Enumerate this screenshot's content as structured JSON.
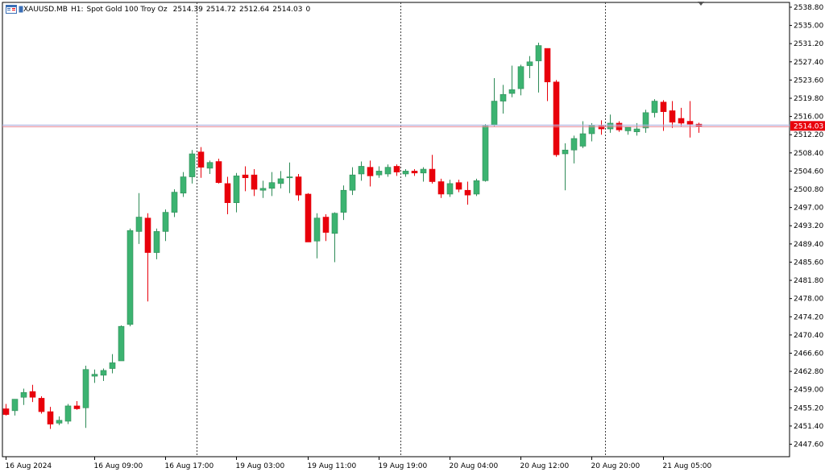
{
  "header": {
    "symbol": "XAUUSD.MB",
    "timeframe": "H1:",
    "description": "Spot Gold 100 Troy Oz",
    "open": "2514.39",
    "high": "2514.72",
    "low": "2512.64",
    "close": "2514.03",
    "volume": "0"
  },
  "colors": {
    "bull": "#3cb371",
    "bear": "#e8000b",
    "price_line_a": "#b0b7e6",
    "price_line_b": "#e58b9a",
    "price_label_bg": "#e8000b",
    "grid_sep": "#404040"
  },
  "chart_data": {
    "type": "candlestick",
    "ylim": [
      2445.0,
      2539.8
    ],
    "y_ticks": [
      "2538.80",
      "2535.00",
      "2531.20",
      "2527.40",
      "2523.60",
      "2519.80",
      "2516.00",
      "2512.20",
      "2508.40",
      "2504.60",
      "2500.80",
      "2497.00",
      "2493.20",
      "2489.40",
      "2485.60",
      "2481.80",
      "2478.00",
      "2474.20",
      "2470.40",
      "2466.60",
      "2462.80",
      "2459.00",
      "2455.20",
      "2451.40",
      "2447.60"
    ],
    "x_labels": [
      {
        "text": "16 Aug 2024",
        "index": 0
      },
      {
        "text": "16 Aug 09:00",
        "index": 10
      },
      {
        "text": "16 Aug 17:00",
        "index": 18
      },
      {
        "text": "19 Aug 03:00",
        "index": 26
      },
      {
        "text": "19 Aug 11:00",
        "index": 34
      },
      {
        "text": "19 Aug 19:00",
        "index": 42
      },
      {
        "text": "20 Aug 04:00",
        "index": 50
      },
      {
        "text": "20 Aug 12:00",
        "index": 58
      },
      {
        "text": "20 Aug 20:00",
        "index": 66
      },
      {
        "text": "21 Aug 05:00",
        "index": 74
      }
    ],
    "period_separators": [
      21.5,
      44.5,
      67.5
    ],
    "current_price": "2514.03",
    "candles": [
      {
        "o": 2455.0,
        "h": 2456.0,
        "l": 2453.6,
        "c": 2453.8
      },
      {
        "o": 2454.6,
        "h": 2457.0,
        "l": 2453.6,
        "c": 2457.0
      },
      {
        "o": 2457.4,
        "h": 2459.2,
        "l": 2455.8,
        "c": 2458.4
      },
      {
        "o": 2458.6,
        "h": 2460.0,
        "l": 2456.4,
        "c": 2457.4
      },
      {
        "o": 2457.2,
        "h": 2457.6,
        "l": 2454.0,
        "c": 2454.4
      },
      {
        "o": 2454.4,
        "h": 2455.4,
        "l": 2450.8,
        "c": 2451.8
      },
      {
        "o": 2452.0,
        "h": 2453.4,
        "l": 2451.6,
        "c": 2452.6
      },
      {
        "o": 2452.4,
        "h": 2456.0,
        "l": 2451.8,
        "c": 2455.6
      },
      {
        "o": 2455.6,
        "h": 2456.6,
        "l": 2454.8,
        "c": 2455.0
      },
      {
        "o": 2455.2,
        "h": 2464.0,
        "l": 2451.0,
        "c": 2463.2
      },
      {
        "o": 2461.8,
        "h": 2463.2,
        "l": 2460.4,
        "c": 2462.2
      },
      {
        "o": 2462.0,
        "h": 2463.4,
        "l": 2460.8,
        "c": 2463.0
      },
      {
        "o": 2463.4,
        "h": 2466.4,
        "l": 2462.4,
        "c": 2464.6
      },
      {
        "o": 2465.0,
        "h": 2472.4,
        "l": 2465.0,
        "c": 2472.2
      },
      {
        "o": 2472.6,
        "h": 2492.6,
        "l": 2472.2,
        "c": 2492.2
      },
      {
        "o": 2492.0,
        "h": 2500.0,
        "l": 2489.4,
        "c": 2495.0
      },
      {
        "o": 2494.8,
        "h": 2495.8,
        "l": 2477.4,
        "c": 2487.6
      },
      {
        "o": 2487.6,
        "h": 2492.6,
        "l": 2486.2,
        "c": 2492.0
      },
      {
        "o": 2492.0,
        "h": 2496.6,
        "l": 2490.0,
        "c": 2496.0
      },
      {
        "o": 2496.0,
        "h": 2500.8,
        "l": 2495.0,
        "c": 2500.2
      },
      {
        "o": 2500.0,
        "h": 2504.4,
        "l": 2499.2,
        "c": 2503.4
      },
      {
        "o": 2503.4,
        "h": 2509.0,
        "l": 2502.0,
        "c": 2508.2
      },
      {
        "o": 2508.6,
        "h": 2509.6,
        "l": 2503.2,
        "c": 2505.4
      },
      {
        "o": 2505.2,
        "h": 2506.8,
        "l": 2504.0,
        "c": 2506.4
      },
      {
        "o": 2506.6,
        "h": 2507.2,
        "l": 2502.0,
        "c": 2502.2
      },
      {
        "o": 2502.0,
        "h": 2503.4,
        "l": 2495.6,
        "c": 2498.0
      },
      {
        "o": 2498.0,
        "h": 2504.2,
        "l": 2496.0,
        "c": 2503.6
      },
      {
        "o": 2503.8,
        "h": 2505.6,
        "l": 2500.4,
        "c": 2503.2
      },
      {
        "o": 2503.8,
        "h": 2505.0,
        "l": 2499.4,
        "c": 2500.8
      },
      {
        "o": 2500.6,
        "h": 2502.6,
        "l": 2499.0,
        "c": 2501.0
      },
      {
        "o": 2501.0,
        "h": 2504.4,
        "l": 2499.4,
        "c": 2502.2
      },
      {
        "o": 2502.0,
        "h": 2504.6,
        "l": 2501.0,
        "c": 2503.0
      },
      {
        "o": 2503.2,
        "h": 2506.4,
        "l": 2500.0,
        "c": 2503.4
      },
      {
        "o": 2503.4,
        "h": 2504.0,
        "l": 2498.4,
        "c": 2499.6
      },
      {
        "o": 2499.8,
        "h": 2500.0,
        "l": 2489.8,
        "c": 2489.8
      },
      {
        "o": 2490.0,
        "h": 2495.8,
        "l": 2486.4,
        "c": 2494.8
      },
      {
        "o": 2495.0,
        "h": 2495.6,
        "l": 2490.0,
        "c": 2491.8
      },
      {
        "o": 2491.6,
        "h": 2496.0,
        "l": 2485.6,
        "c": 2495.8
      },
      {
        "o": 2496.0,
        "h": 2501.6,
        "l": 2494.4,
        "c": 2500.6
      },
      {
        "o": 2500.6,
        "h": 2505.4,
        "l": 2499.6,
        "c": 2503.8
      },
      {
        "o": 2504.0,
        "h": 2506.6,
        "l": 2502.6,
        "c": 2505.6
      },
      {
        "o": 2505.4,
        "h": 2506.8,
        "l": 2501.4,
        "c": 2503.6
      },
      {
        "o": 2503.8,
        "h": 2505.6,
        "l": 2503.2,
        "c": 2504.6
      },
      {
        "o": 2504.0,
        "h": 2506.0,
        "l": 2503.4,
        "c": 2505.4
      },
      {
        "o": 2505.6,
        "h": 2506.0,
        "l": 2503.6,
        "c": 2504.4
      },
      {
        "o": 2504.0,
        "h": 2505.0,
        "l": 2503.4,
        "c": 2504.6
      },
      {
        "o": 2504.6,
        "h": 2505.0,
        "l": 2503.6,
        "c": 2504.2
      },
      {
        "o": 2504.2,
        "h": 2505.4,
        "l": 2502.4,
        "c": 2505.0
      },
      {
        "o": 2505.0,
        "h": 2508.0,
        "l": 2502.0,
        "c": 2502.4
      },
      {
        "o": 2502.4,
        "h": 2503.0,
        "l": 2499.0,
        "c": 2499.8
      },
      {
        "o": 2499.8,
        "h": 2502.8,
        "l": 2499.2,
        "c": 2502.0
      },
      {
        "o": 2502.2,
        "h": 2502.8,
        "l": 2500.2,
        "c": 2500.8
      },
      {
        "o": 2500.6,
        "h": 2502.4,
        "l": 2497.6,
        "c": 2499.6
      },
      {
        "o": 2499.8,
        "h": 2503.0,
        "l": 2499.4,
        "c": 2502.6
      },
      {
        "o": 2502.6,
        "h": 2514.4,
        "l": 2502.4,
        "c": 2514.0
      },
      {
        "o": 2514.2,
        "h": 2524.0,
        "l": 2514.0,
        "c": 2519.2
      },
      {
        "o": 2519.2,
        "h": 2522.6,
        "l": 2516.6,
        "c": 2520.6
      },
      {
        "o": 2520.8,
        "h": 2526.6,
        "l": 2520.0,
        "c": 2521.6
      },
      {
        "o": 2521.8,
        "h": 2526.8,
        "l": 2520.4,
        "c": 2526.4
      },
      {
        "o": 2526.6,
        "h": 2528.6,
        "l": 2524.0,
        "c": 2527.4
      },
      {
        "o": 2527.6,
        "h": 2531.4,
        "l": 2521.0,
        "c": 2530.8
      },
      {
        "o": 2530.2,
        "h": 2530.2,
        "l": 2519.2,
        "c": 2523.2
      },
      {
        "o": 2523.2,
        "h": 2523.6,
        "l": 2507.6,
        "c": 2508.0
      },
      {
        "o": 2508.2,
        "h": 2510.4,
        "l": 2500.6,
        "c": 2509.0
      },
      {
        "o": 2509.0,
        "h": 2512.0,
        "l": 2506.2,
        "c": 2511.4
      },
      {
        "o": 2509.8,
        "h": 2515.0,
        "l": 2509.4,
        "c": 2512.4
      },
      {
        "o": 2512.4,
        "h": 2514.6,
        "l": 2510.8,
        "c": 2514.2
      },
      {
        "o": 2514.0,
        "h": 2515.2,
        "l": 2512.2,
        "c": 2513.4
      },
      {
        "o": 2513.4,
        "h": 2516.4,
        "l": 2512.6,
        "c": 2514.6
      },
      {
        "o": 2514.6,
        "h": 2515.0,
        "l": 2512.8,
        "c": 2513.2
      },
      {
        "o": 2513.0,
        "h": 2513.8,
        "l": 2512.2,
        "c": 2513.8
      },
      {
        "o": 2512.8,
        "h": 2514.6,
        "l": 2512.0,
        "c": 2513.4
      },
      {
        "o": 2513.6,
        "h": 2517.4,
        "l": 2512.6,
        "c": 2516.8
      },
      {
        "o": 2516.8,
        "h": 2519.6,
        "l": 2515.8,
        "c": 2519.2
      },
      {
        "o": 2519.0,
        "h": 2519.4,
        "l": 2513.0,
        "c": 2517.0
      },
      {
        "o": 2517.2,
        "h": 2519.2,
        "l": 2513.6,
        "c": 2514.8
      },
      {
        "o": 2515.6,
        "h": 2517.8,
        "l": 2514.0,
        "c": 2514.6
      },
      {
        "o": 2515.0,
        "h": 2519.2,
        "l": 2511.6,
        "c": 2514.4
      },
      {
        "o": 2514.4,
        "h": 2514.7,
        "l": 2512.6,
        "c": 2514.0
      }
    ]
  }
}
